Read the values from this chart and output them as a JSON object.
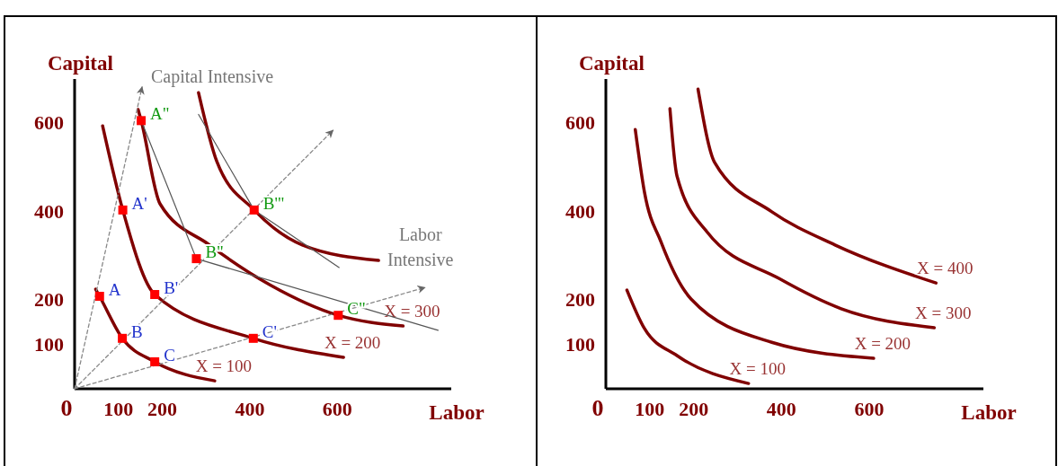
{
  "chart_data": [
    {
      "type": "line",
      "xlabel": "Labor",
      "ylabel": "Capital",
      "xlim": [
        0,
        860
      ],
      "ylim": [
        0,
        700
      ],
      "xticks": [
        0,
        100,
        200,
        400,
        600
      ],
      "yticks": [
        100,
        200,
        400,
        600
      ],
      "grid": false,
      "marker": "none",
      "series": [
        {
          "name": "X = 100",
          "color": "#800000",
          "x": [
            48,
            57,
            109,
            183,
            320
          ],
          "values": [
            225,
            209,
            114,
            61,
            18
          ]
        },
        {
          "name": "X = 200",
          "color": "#800000",
          "x": [
            64,
            110,
            183,
            408,
            614
          ],
          "values": [
            594,
            404,
            213,
            114,
            71
          ]
        },
        {
          "name": "X = 300",
          "color": "#800000",
          "x": [
            145,
            152,
            195,
            308,
            446,
            602,
            750
          ],
          "values": [
            631,
            606,
            418,
            325,
            235,
            166,
            142
          ]
        },
        {
          "color": "#800000",
          "x": [
            283,
            325,
            410,
            520,
            694
          ],
          "values": [
            669,
            513,
            404,
            325,
            290
          ]
        },
        {
          "color": "#555555",
          "x": [
            152,
            278,
            830
          ],
          "values": [
            606,
            294,
            132
          ]
        },
        {
          "color": "#555555",
          "x": [
            283,
            410,
            604
          ],
          "values": [
            620,
            404,
            274
          ]
        },
        {
          "color": "#888888",
          "line_style": "dashed",
          "x": [
            0,
            154
          ],
          "values": [
            0,
            682
          ]
        },
        {
          "color": "#888888",
          "line_style": "dashed",
          "x": [
            0,
            590
          ],
          "values": [
            0,
            584
          ]
        },
        {
          "color": "#888888",
          "line_style": "dashed",
          "x": [
            0,
            800
          ],
          "values": [
            0,
            229
          ]
        },
        {
          "type": "scatter",
          "marker": "square",
          "color": "#ff0000",
          "x": [
            57,
            109,
            183,
            110,
            183,
            408
          ],
          "values": [
            209,
            114,
            61,
            404,
            213,
            114
          ],
          "value_labels": [
            "A",
            "B",
            "C",
            "A'",
            "B'",
            "C'"
          ]
        },
        {
          "type": "scatter",
          "marker": "square",
          "color": "#ff0000",
          "x": [
            152,
            278,
            602,
            410
          ],
          "values": [
            606,
            294,
            166,
            404
          ],
          "value_labels": [
            "A\"",
            "B\"",
            "C\"",
            "B'\""
          ]
        }
      ],
      "annotations": [
        {
          "text": "Capital Intensive",
          "x": 154,
          "y": 682
        },
        {
          "text": "Labor\nIntensive",
          "x": 800,
          "y": 229
        }
      ]
    },
    {
      "type": "line",
      "xlabel": "Labor",
      "ylabel": "Capital",
      "xlim": [
        0,
        860
      ],
      "ylim": [
        0,
        700
      ],
      "xticks": [
        0,
        100,
        200,
        400,
        600
      ],
      "yticks": [
        100,
        200,
        400,
        600
      ],
      "grid": false,
      "marker": "none",
      "series": [
        {
          "name": "X = 100",
          "color": "#800000",
          "x": [
            48,
            88,
            162,
            325
          ],
          "values": [
            223,
            136,
            75,
            12
          ]
        },
        {
          "name": "X = 200",
          "color": "#800000",
          "x": [
            67,
            88,
            126,
            194,
            378,
            610
          ],
          "values": [
            586,
            444,
            331,
            203,
            105,
            69
          ]
        },
        {
          "name": "X = 300",
          "color": "#800000",
          "x": [
            146,
            162,
            230,
            395,
            536,
            748
          ],
          "values": [
            633,
            481,
            355,
            249,
            181,
            138
          ]
        },
        {
          "name": "X = 400",
          "color": "#800000",
          "x": [
            210,
            248,
            378,
            522,
            752
          ],
          "values": [
            677,
            511,
            400,
            325,
            239
          ]
        }
      ]
    }
  ]
}
